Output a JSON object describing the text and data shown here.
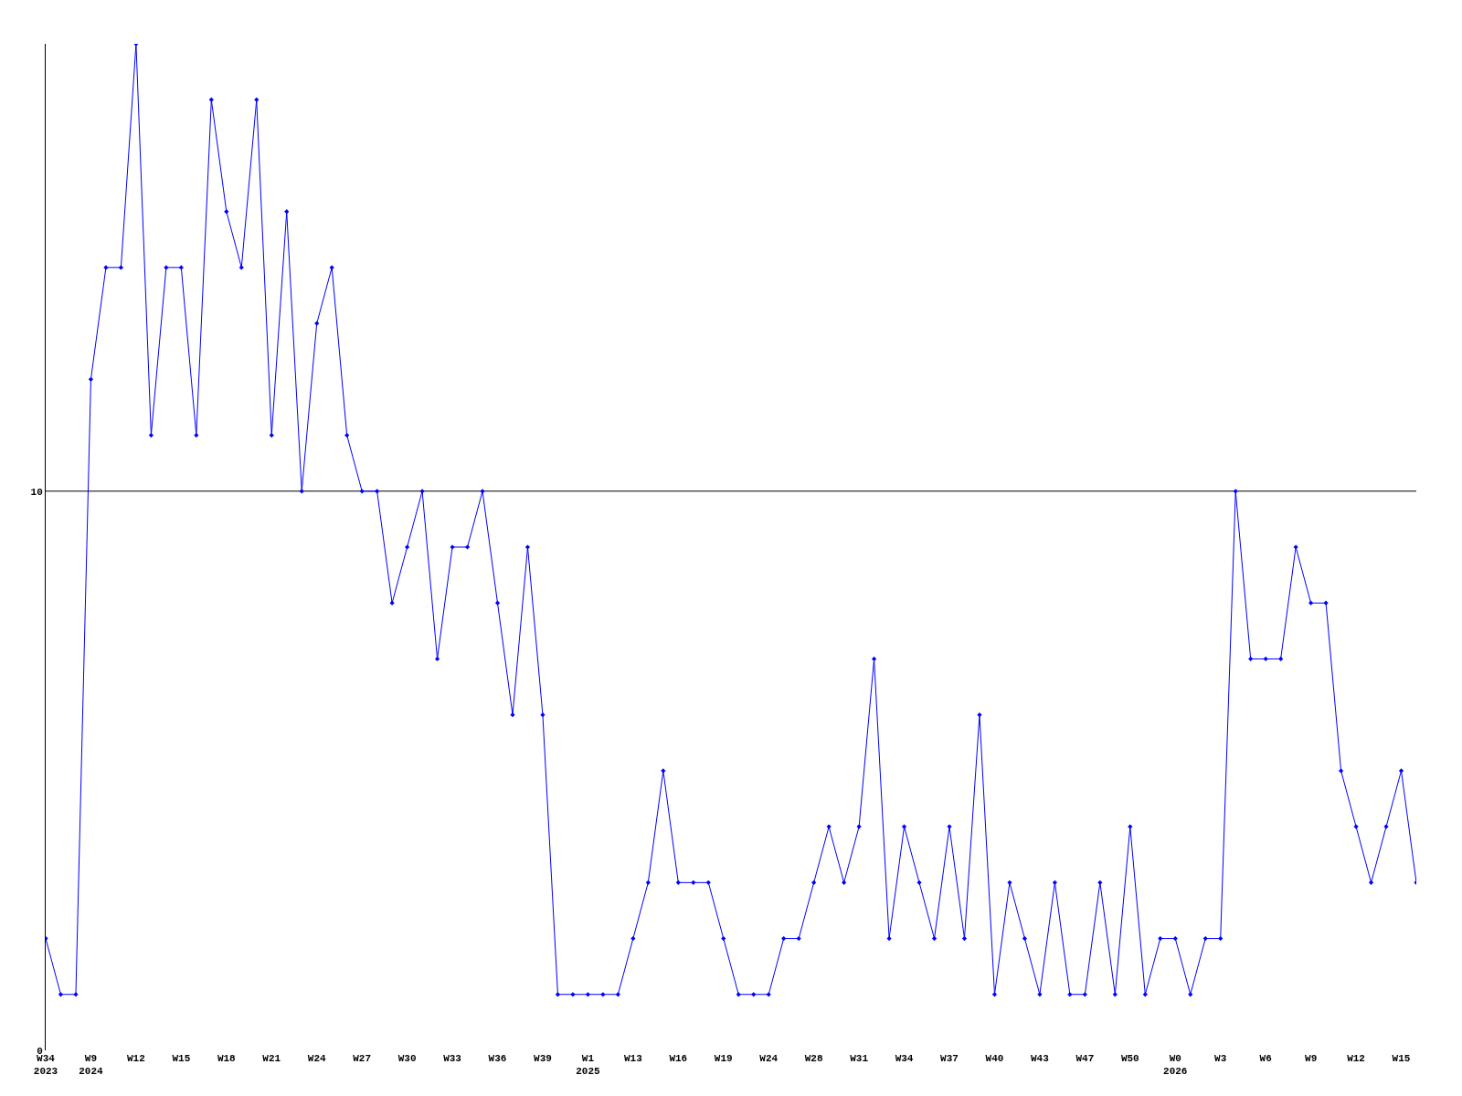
{
  "chart_data": {
    "type": "line",
    "categories": [
      "W34\n2023",
      null,
      null,
      "W9\n2024",
      null,
      null,
      "W12",
      null,
      null,
      "W15",
      null,
      null,
      "W18",
      null,
      null,
      "W21",
      null,
      null,
      "W24",
      null,
      null,
      "W27",
      null,
      null,
      "W30",
      null,
      null,
      "W33",
      null,
      null,
      "W36",
      null,
      null,
      "W39",
      null,
      null,
      "W1\n2025",
      null,
      null,
      "W13",
      null,
      null,
      "W16",
      null,
      null,
      "W19",
      null,
      null,
      "W24",
      null,
      null,
      "W28",
      null,
      null,
      "W31",
      null,
      null,
      "W34",
      null,
      null,
      "W37",
      null,
      null,
      "W40",
      null,
      null,
      "W43",
      null,
      null,
      "W47",
      null,
      null,
      "W50",
      null,
      null,
      "W0\n2026",
      null,
      null,
      "W3",
      null,
      null,
      "W6",
      null,
      null,
      "W9",
      null,
      null,
      "W12",
      null,
      null,
      "W15",
      null
    ],
    "series": [
      {
        "color": "#0000ff",
        "values": [
          2,
          1,
          1,
          12,
          14,
          14,
          18,
          11,
          14,
          14,
          11,
          17,
          15,
          14,
          17,
          11,
          15,
          10,
          13,
          14,
          11,
          10,
          10,
          8,
          9,
          10,
          7,
          9,
          9,
          10,
          8,
          6,
          9,
          6,
          1,
          1,
          1,
          1,
          1,
          2,
          3,
          5,
          3,
          3,
          3,
          2,
          1,
          1,
          1,
          2,
          2,
          3,
          4,
          3,
          4,
          7,
          2,
          4,
          3,
          2,
          4,
          2,
          6,
          1,
          3,
          2,
          1,
          3,
          1,
          1,
          3,
          1,
          4,
          1,
          2,
          2,
          1,
          2,
          2,
          10,
          7,
          7,
          7,
          9,
          8,
          8,
          5,
          4,
          3,
          4,
          5,
          3
        ]
      }
    ],
    "ylim": [
      0,
      18
    ],
    "yticks": [
      0,
      10
    ],
    "ref_lines": [
      {
        "axis": "y",
        "value": 10,
        "color": "#000000"
      }
    ],
    "marker": "diamond",
    "line_style": "solid",
    "grid": false
  }
}
